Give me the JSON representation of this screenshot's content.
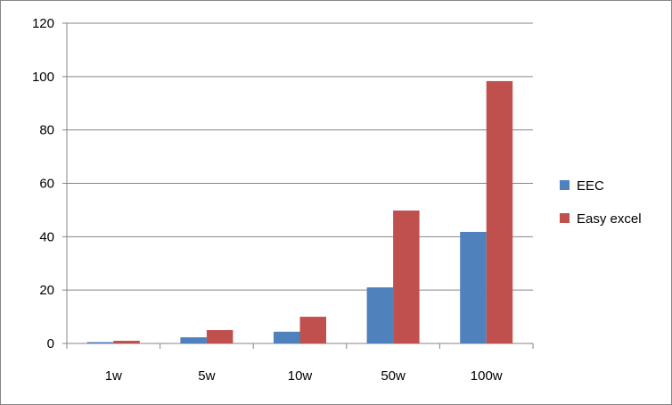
{
  "chart_data": {
    "type": "bar",
    "title": "",
    "xlabel": "",
    "ylabel": "",
    "categories": [
      "1w",
      "5w",
      "10w",
      "50w",
      "100w"
    ],
    "series": [
      {
        "name": "EEC",
        "color": "#4F81BD",
        "values": [
          0.5,
          2.3,
          4.4,
          21,
          41.8
        ]
      },
      {
        "name": "Easy excel",
        "color": "#C0504D",
        "values": [
          1,
          5,
          10,
          49.8,
          98.3
        ]
      }
    ],
    "ylim": [
      0,
      120
    ],
    "yticks": [
      0,
      20,
      40,
      60,
      80,
      100,
      120
    ],
    "grid": true,
    "legend_position": "right"
  }
}
